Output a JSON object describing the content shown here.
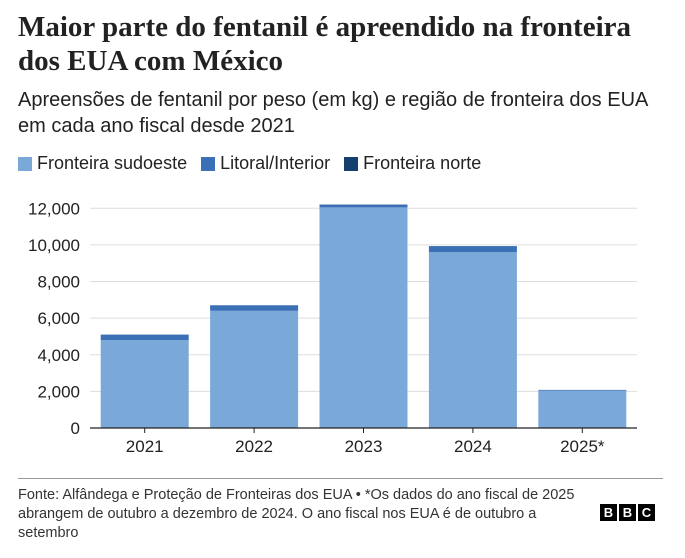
{
  "chart_data": {
    "type": "bar",
    "stacked": true,
    "title": "Maior parte do fentanil é apreendido na fronteira dos EUA com México",
    "subtitle": "Apreensões de fentanil por peso (em kg) e região de fronteira dos EUA em cada ano fiscal desde 2021",
    "categories": [
      "2021",
      "2022",
      "2023",
      "2024",
      "2025*"
    ],
    "series": [
      {
        "name": "Fronteira sudoeste",
        "color": "#7aa9d9",
        "values": [
          4800,
          6400,
          12050,
          9600,
          2050
        ]
      },
      {
        "name": "Litoral/Interior",
        "color": "#3b70b6",
        "values": [
          300,
          300,
          150,
          330,
          30
        ]
      },
      {
        "name": "Fronteira norte",
        "color": "#14406e",
        "values": [
          5,
          5,
          10,
          10,
          2
        ]
      }
    ],
    "ylim": [
      0,
      13000
    ],
    "yticks": [
      0,
      2000,
      4000,
      6000,
      8000,
      10000,
      12000
    ],
    "ytick_labels": [
      "0",
      "2,000",
      "4,000",
      "6,000",
      "8,000",
      "10,000",
      "12,000"
    ],
    "xlabel": "",
    "ylabel": ""
  },
  "footer": {
    "source": "Fonte: Alfândega e Proteção de Fronteiras dos EUA • *Os dados do ano fiscal de 2025 abrangem de outubro a dezembro de 2024. O ano fiscal nos EUA é de outubro a setembro"
  },
  "logo": {
    "letters": [
      "B",
      "B",
      "C"
    ]
  },
  "colors": {
    "gridline": "#dddddd",
    "axis": "#222222"
  }
}
